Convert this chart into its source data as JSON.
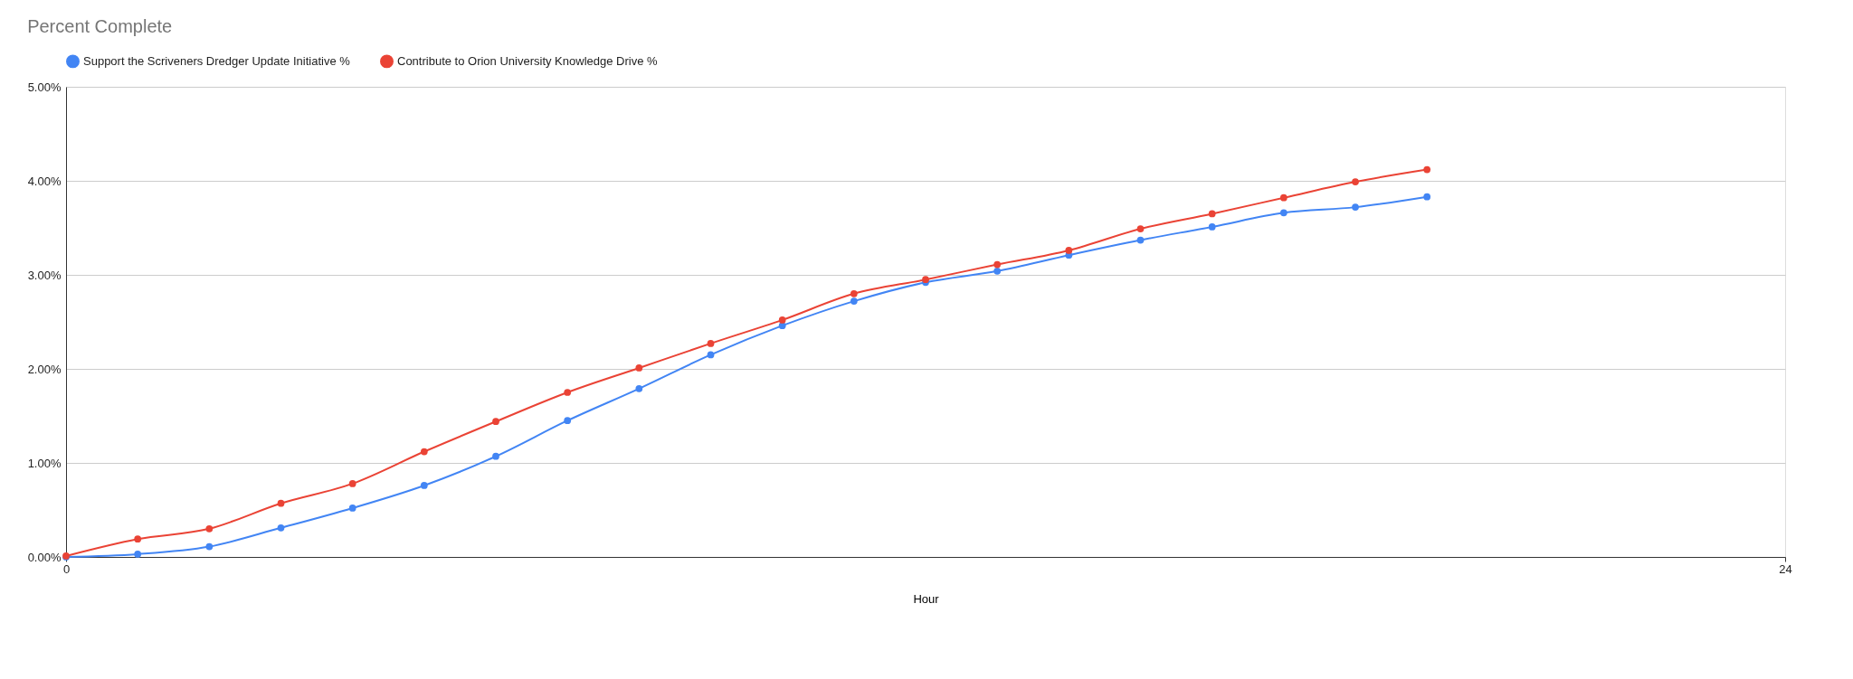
{
  "chart_data": {
    "type": "line",
    "title": "Percent Complete",
    "xlabel": "Hour",
    "x": [
      0,
      1,
      2,
      3,
      4,
      5,
      6,
      7,
      8,
      9,
      10,
      11,
      12,
      13,
      14,
      15,
      16,
      17,
      18,
      19
    ],
    "series": [
      {
        "name": "Support the Scriveners Dredger Update Initiative %",
        "color": "#4285f4",
        "values": [
          0.0,
          0.03,
          0.11,
          0.31,
          0.52,
          0.76,
          1.07,
          1.45,
          1.79,
          2.15,
          2.46,
          2.72,
          2.92,
          3.04,
          3.21,
          3.37,
          3.51,
          3.66,
          3.72,
          3.83
        ]
      },
      {
        "name": "Contribute to Orion University Knowledge Drive %",
        "color": "#ea4335",
        "values": [
          0.01,
          0.19,
          0.3,
          0.57,
          0.78,
          1.12,
          1.44,
          1.75,
          2.01,
          2.27,
          2.52,
          2.8,
          2.95,
          3.11,
          3.26,
          3.49,
          3.65,
          3.82,
          3.99,
          4.12
        ]
      }
    ],
    "xlim": [
      0,
      24
    ],
    "xticks": [
      0,
      24
    ],
    "ylim": [
      0,
      5
    ],
    "yticks": [
      {
        "value": 0,
        "label": "0.00%"
      },
      {
        "value": 1,
        "label": "1.00%"
      },
      {
        "value": 2,
        "label": "2.00%"
      },
      {
        "value": 3,
        "label": "3.00%"
      },
      {
        "value": 4,
        "label": "4.00%"
      },
      {
        "value": 5,
        "label": "5.00%"
      }
    ],
    "grid": "y",
    "legend": "top",
    "marker": "circle",
    "line_style": "solid"
  }
}
